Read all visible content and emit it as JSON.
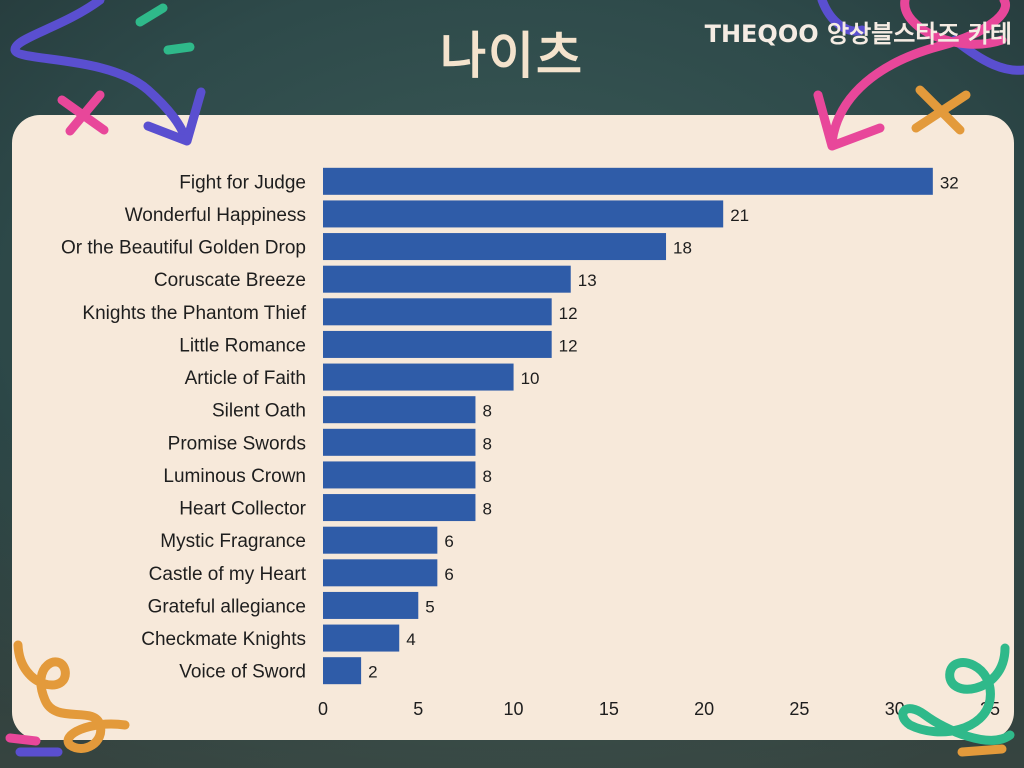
{
  "caption": "THEQOO 앙상블스타즈 카테",
  "colors": {
    "background": "#2e4a4a",
    "panel": "#f7e9da",
    "bar": "#2f5ca8",
    "title": "#f4e3cd",
    "caption": "#f5ece3",
    "label": "#1e1e1e",
    "doodle_purple": "#5a4fd0",
    "doodle_pink": "#e8479a",
    "doodle_green": "#2fb98a",
    "doodle_orange": "#e39a3b"
  },
  "chart_data": {
    "type": "bar",
    "orientation": "horizontal",
    "title": "나이츠",
    "categories": [
      "Fight for Judge",
      "Wonderful Happiness",
      "Or the Beautiful Golden Drop",
      "Coruscate Breeze",
      "Knights the Phantom Thief",
      "Little Romance",
      "Article of Faith",
      "Silent Oath",
      "Promise Swords",
      "Luminous Crown",
      "Heart Collector",
      "Mystic Fragrance",
      "Castle of my Heart",
      "Grateful allegiance",
      "Checkmate Knights",
      "Voice of Sword"
    ],
    "values": [
      32,
      21,
      18,
      13,
      12,
      12,
      10,
      8,
      8,
      8,
      8,
      6,
      6,
      5,
      4,
      2
    ],
    "data_labels": true,
    "xlim": [
      0,
      35
    ],
    "xticks": [
      0,
      5,
      10,
      15,
      20,
      25,
      30,
      35
    ],
    "grid": false,
    "legend": "none"
  }
}
